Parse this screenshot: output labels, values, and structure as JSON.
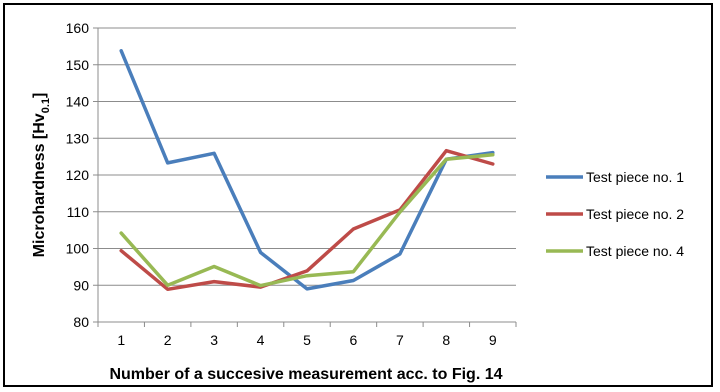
{
  "chart_data": {
    "type": "line",
    "x": [
      1,
      2,
      3,
      4,
      5,
      6,
      7,
      8,
      9
    ],
    "xlabel": "Number of a succesive measurement acc. to Fig. 14",
    "ylabel": "Microhardness [Hv",
    "ylabel_subscript": "0.1",
    "ylabel_suffix": "]",
    "ylim": [
      80,
      160
    ],
    "yticks": [
      80,
      90,
      100,
      110,
      120,
      130,
      140,
      150,
      160
    ],
    "grid": "horizontal",
    "legend_position": "right",
    "series": [
      {
        "name": "Test piece no. 1",
        "color": "#4a7ebb",
        "values": [
          153.8,
          123.3,
          125.9,
          98.9,
          89.0,
          91.3,
          98.5,
          124.3,
          126.1
        ]
      },
      {
        "name": "Test piece no. 2",
        "color": "#be4b48",
        "values": [
          99.4,
          88.9,
          91.0,
          89.5,
          93.9,
          105.3,
          110.5,
          126.6,
          123.0
        ]
      },
      {
        "name": "Test piece no. 4",
        "color": "#98b954",
        "values": [
          104.2,
          90.0,
          95.1,
          89.9,
          92.6,
          93.7,
          109.9,
          124.3,
          125.5
        ]
      }
    ]
  }
}
